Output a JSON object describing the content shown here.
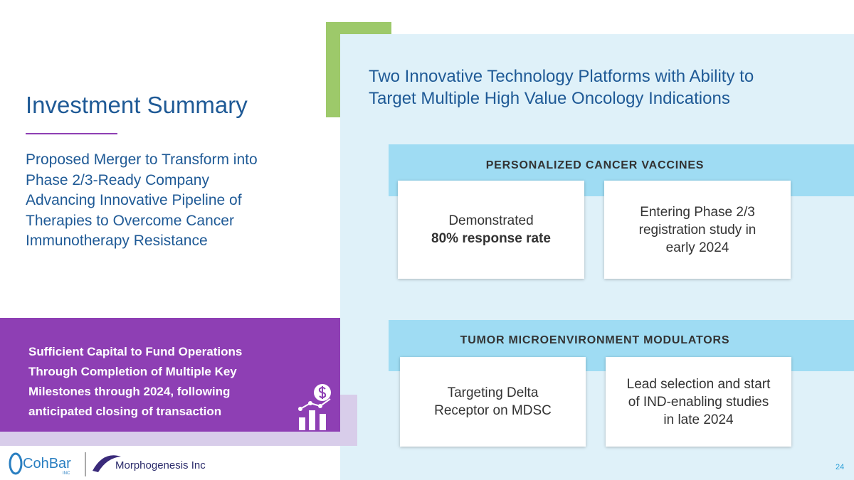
{
  "left": {
    "title": "Investment Summary",
    "subtitle": [
      "Proposed Merger to Transform into",
      "Phase 2/3-Ready Company",
      "Advancing Innovative Pipeline of",
      "Therapies to Overcome Cancer",
      "Immunotherapy Resistance"
    ],
    "highlight": [
      "Sufficient Capital to Fund Operations",
      "Through Completion of Multiple Key",
      "Milestones through 2024, following",
      "anticipated closing of transaction"
    ]
  },
  "logos": {
    "cohbar": "CohBar",
    "cohbar_suffix": "INC",
    "morphogenesis": "Morphogenesis Inc"
  },
  "right": {
    "heading": [
      "Two Innovative Technology Platforms with Ability to",
      "Target Multiple High Value Oncology Indications"
    ],
    "sections": [
      {
        "title": "PERSONALIZED CANCER VACCINES",
        "cards": [
          {
            "lines": [
              "Demonstrated"
            ],
            "bold": "80% response rate"
          },
          {
            "lines": [
              "Entering Phase 2/3",
              "registration study in",
              "early 2024"
            ]
          }
        ]
      },
      {
        "title": "TUMOR MICROENVIRONMENT MODULATORS",
        "cards": [
          {
            "lines": [
              "Targeting Delta",
              "Receptor on MDSC"
            ]
          },
          {
            "lines": [
              "Lead selection and start",
              "of IND-enabling studies",
              "in late 2024"
            ]
          }
        ]
      }
    ]
  },
  "page_number": "24"
}
